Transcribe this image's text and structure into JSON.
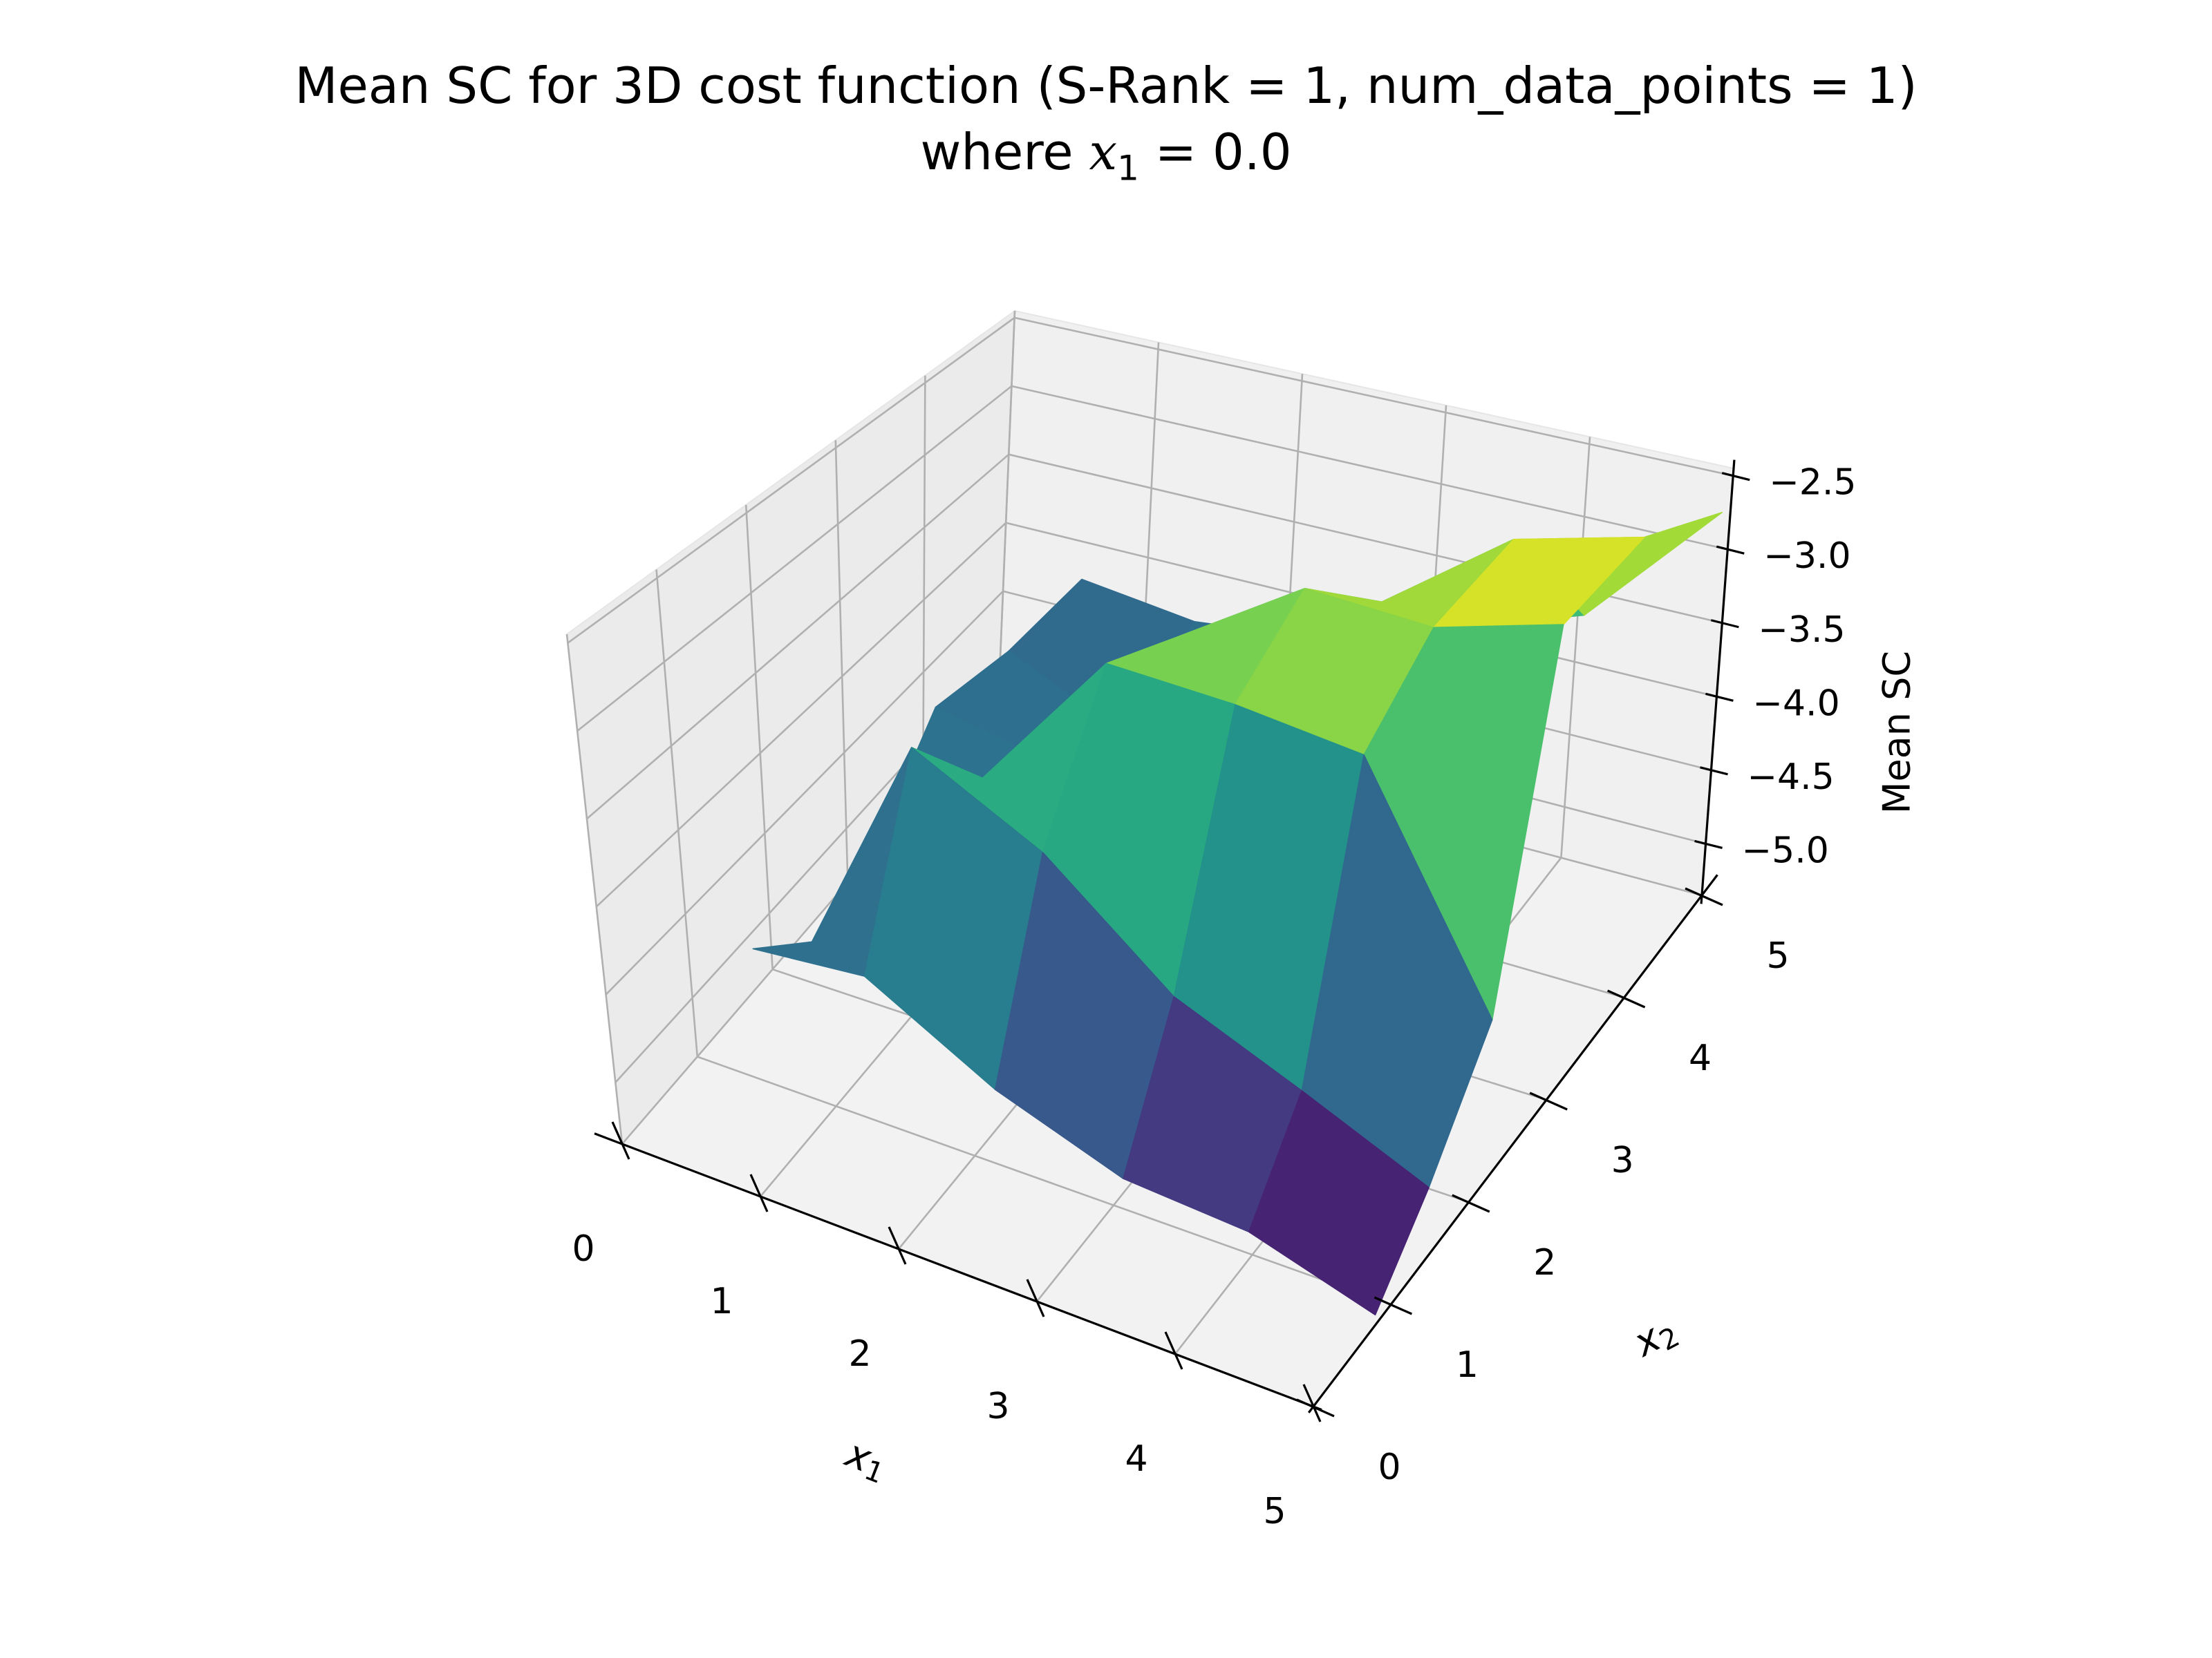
{
  "chart_data": {
    "type": "surface",
    "title": "Mean SC for 3D cost function (S-Rank = 1, num_data_points = 1)",
    "subtitle": {
      "prefix": "where ",
      "var": "x",
      "sub": "1",
      "suffix": " = 0.0"
    },
    "xlabel": {
      "var": "x",
      "sub": "1"
    },
    "ylabel": {
      "var": "x",
      "sub": "2"
    },
    "zlabel": "Mean SC",
    "xlim": [
      0,
      5
    ],
    "ylim": [
      0,
      5
    ],
    "zlim": [
      -5.35,
      -2.45
    ],
    "x_ticks": [
      "0",
      "1",
      "2",
      "3",
      "4",
      "5"
    ],
    "y_ticks": [
      "0",
      "1",
      "2",
      "3",
      "4",
      "5"
    ],
    "z_ticks": [
      "−2.5",
      "−3.0",
      "−3.5",
      "−4.0",
      "−4.5",
      "−5.0"
    ],
    "z_tick_values": [
      -2.5,
      -3.0,
      -3.5,
      -4.0,
      -4.5,
      -5.0
    ],
    "grid": true,
    "colormap": "viridis",
    "x": [
      0.6,
      1.4,
      2.3,
      3.2,
      4.1,
      5.0
    ],
    "y": [
      0.8,
      1.5,
      2.3,
      3.1,
      4.0,
      4.9
    ],
    "z": [
      [
        -4.45,
        -4.4,
        -4.8,
        -5.05,
        -5.1,
        -5.3
      ],
      [
        -4.75,
        -3.4,
        -3.8,
        -4.4,
        -4.7,
        -5.0
      ],
      [
        -4.6,
        -3.95,
        -3.05,
        -3.1,
        -3.2,
        -4.5
      ],
      [
        -4.1,
        -4.25,
        -3.25,
        -2.75,
        -2.8,
        -2.6
      ],
      [
        -4.2,
        -4.55,
        -4.0,
        -3.25,
        -2.65,
        -2.45
      ],
      [
        -4.2,
        -4.3,
        -4.2,
        -3.9,
        -3.6,
        -2.7
      ]
    ]
  }
}
